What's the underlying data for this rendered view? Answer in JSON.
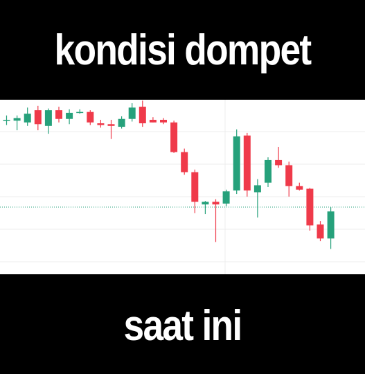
{
  "meme": {
    "top_caption": "kondisi dompet",
    "bottom_caption": "saat ini"
  },
  "colors": {
    "background": "#000000",
    "caption": "#ffffff",
    "chart_background": "#ffffff",
    "up": "#26a17b",
    "down": "#ef3a4a",
    "grid": "#ececec",
    "price_line": "#26a17b"
  },
  "chart_data": {
    "type": "candlestick",
    "title": "",
    "xlabel": "",
    "ylabel": "",
    "ylim": [
      0,
      100
    ],
    "grid": true,
    "current_price": 38.5,
    "candles": [
      {
        "o": 88.5,
        "h": 91.0,
        "l": 85.5,
        "c": 88.5
      },
      {
        "o": 88.0,
        "h": 91.0,
        "l": 82.5,
        "c": 89.5
      },
      {
        "o": 87.0,
        "h": 95.5,
        "l": 85.0,
        "c": 92.0
      },
      {
        "o": 94.0,
        "h": 96.5,
        "l": 82.5,
        "c": 86.0
      },
      {
        "o": 85.0,
        "h": 95.0,
        "l": 80.5,
        "c": 94.0
      },
      {
        "o": 94.0,
        "h": 96.0,
        "l": 87.0,
        "c": 89.0
      },
      {
        "o": 89.0,
        "h": 94.5,
        "l": 86.0,
        "c": 92.5
      },
      {
        "o": 93.0,
        "h": 94.5,
        "l": 92.0,
        "c": 93.0
      },
      {
        "o": 93.0,
        "h": 94.0,
        "l": 85.5,
        "c": 87.0
      },
      {
        "o": 86.5,
        "h": 88.5,
        "l": 84.0,
        "c": 85.5
      },
      {
        "o": 86.0,
        "h": 88.5,
        "l": 77.5,
        "c": 85.0
      },
      {
        "o": 84.5,
        "h": 90.5,
        "l": 83.5,
        "c": 89.0
      },
      {
        "o": 89.0,
        "h": 98.0,
        "l": 87.5,
        "c": 95.5
      },
      {
        "o": 96.0,
        "h": 99.5,
        "l": 84.5,
        "c": 86.5
      },
      {
        "o": 88.5,
        "h": 90.0,
        "l": 87.0,
        "c": 87.0
      },
      {
        "o": 88.5,
        "h": 89.5,
        "l": 86.0,
        "c": 87.0
      },
      {
        "o": 87.0,
        "h": 88.0,
        "l": 69.5,
        "c": 70.0
      },
      {
        "o": 70.0,
        "h": 72.0,
        "l": 57.0,
        "c": 58.5
      },
      {
        "o": 58.5,
        "h": 60.0,
        "l": 35.0,
        "c": 41.5
      },
      {
        "o": 40.0,
        "h": 42.0,
        "l": 34.5,
        "c": 41.5
      },
      {
        "o": 41.5,
        "h": 43.0,
        "l": 18.5,
        "c": 40.0
      },
      {
        "o": 40.5,
        "h": 48.5,
        "l": 39.0,
        "c": 47.5
      },
      {
        "o": 48.0,
        "h": 83.0,
        "l": 46.0,
        "c": 79.0
      },
      {
        "o": 79.5,
        "h": 81.0,
        "l": 44.5,
        "c": 48.0
      },
      {
        "o": 47.0,
        "h": 54.5,
        "l": 32.5,
        "c": 51.0
      },
      {
        "o": 52.5,
        "h": 67.0,
        "l": 50.0,
        "c": 65.5
      },
      {
        "o": 65.5,
        "h": 73.0,
        "l": 61.0,
        "c": 62.5
      },
      {
        "o": 62.5,
        "h": 64.5,
        "l": 44.5,
        "c": 50.5
      },
      {
        "o": 50.5,
        "h": 52.5,
        "l": 48.0,
        "c": 48.5
      },
      {
        "o": 49.0,
        "h": 49.5,
        "l": 25.0,
        "c": 28.0
      },
      {
        "o": 28.5,
        "h": 30.5,
        "l": 19.0,
        "c": 20.5
      },
      {
        "o": 20.5,
        "h": 38.5,
        "l": 14.5,
        "c": 36.0
      }
    ]
  }
}
